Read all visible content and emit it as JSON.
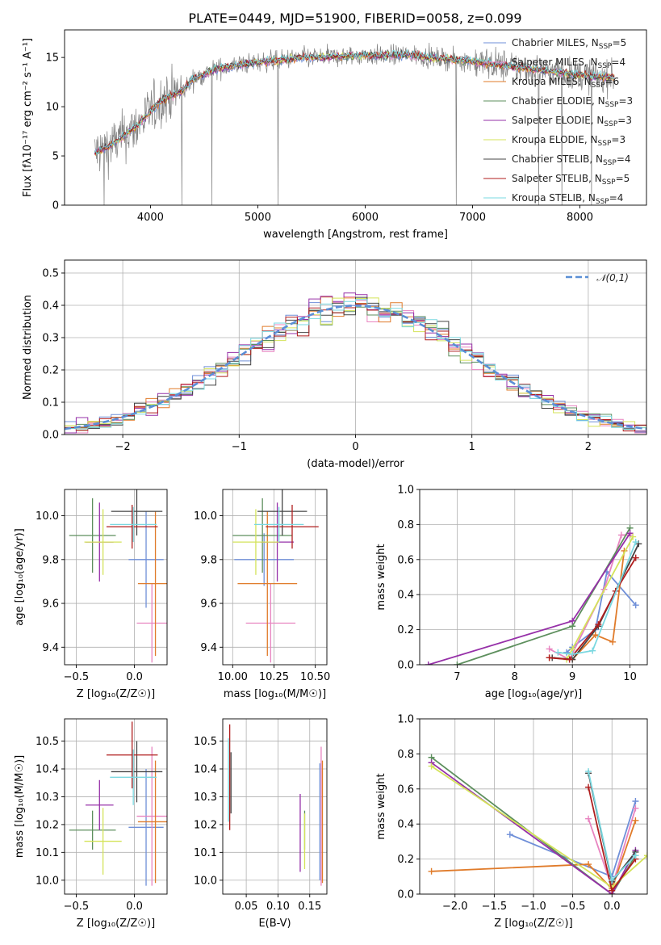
{
  "figure": {
    "title": "PLATE=0449, MJD=51900, FIBERID=0058, z=0.099"
  },
  "models": [
    {
      "name": "Chabrier MILES",
      "nssp": "5",
      "color": "#6f8fd8"
    },
    {
      "name": "Salpeter MILES",
      "nssp": "4",
      "color": "#e884c0"
    },
    {
      "name": "Kroupa MILES",
      "nssp": "6",
      "color": "#e07b2a"
    },
    {
      "name": "Chabrier ELODIE",
      "nssp": "3",
      "color": "#5d8f5d"
    },
    {
      "name": "Salpeter ELODIE",
      "nssp": "3",
      "color": "#9630a8"
    },
    {
      "name": "Kroupa ELODIE",
      "nssp": "3",
      "color": "#d4e35a"
    },
    {
      "name": "Chabrier STELIB",
      "nssp": "4",
      "color": "#444444"
    },
    {
      "name": "Salpeter STELIB",
      "nssp": "5",
      "color": "#b01e1e"
    },
    {
      "name": "Kroupa STELIB",
      "nssp": "4",
      "color": "#7ad8e0"
    }
  ],
  "chart_data": [
    {
      "id": "spectrum",
      "type": "line",
      "xlabel": "wavelength [Angstrom, rest frame]",
      "ylabel": "Flux [fλ10⁻¹⁷ erg cm⁻² s⁻¹ A⁻¹]",
      "xlim": [
        3200,
        8620
      ],
      "ylim": [
        0,
        17.8
      ],
      "xticks": [
        4000,
        5000,
        6000,
        7000,
        8000
      ],
      "yticks": [
        0,
        5,
        10,
        15
      ],
      "legend_loc": "right",
      "data_envelope": {
        "x": [
          3500,
          3600,
          3700,
          3800,
          3900,
          4000,
          4100,
          4200,
          4300,
          4400,
          4500,
          4600,
          4800,
          5000,
          5200,
          5400,
          5600,
          5800,
          6000,
          6200,
          6400,
          6600,
          6800,
          7000,
          7200,
          7400,
          7600,
          7800,
          8000,
          8200
        ],
        "y": [
          5.4,
          5.9,
          6.6,
          7.4,
          8.3,
          9.5,
          10.6,
          11.2,
          11.6,
          12.8,
          13.3,
          13.8,
          14.2,
          14.5,
          14.7,
          15.0,
          15.0,
          15.1,
          15.2,
          15.2,
          15.3,
          15.0,
          14.8,
          14.6,
          14.3,
          14.0,
          13.7,
          13.5,
          13.2,
          13.0
        ]
      },
      "noise_amplitude": 2.2
    },
    {
      "id": "residuals",
      "type": "histogram",
      "xlabel": "(data-model)/error",
      "ylabel": "Normed distribution",
      "xlim": [
        -2.5,
        2.5
      ],
      "ylim": [
        0,
        0.54
      ],
      "xticks": [
        -2,
        -1,
        0,
        1,
        2
      ],
      "yticks": [
        0,
        0.1,
        0.2,
        0.3,
        0.4,
        0.5
      ],
      "reference": {
        "label": "𝒩(0,1)",
        "mean": 0,
        "sigma": 1
      },
      "bins": 50
    },
    {
      "id": "age-vs-z",
      "type": "errorbar",
      "xlabel": "Z [log₁₀(Z/Z☉)]",
      "ylabel": "age  [log₁₀(age/yr)]",
      "xlim": [
        -0.6,
        0.28
      ],
      "ylim": [
        9.32,
        10.12
      ],
      "xticks": [
        -0.5,
        0.0
      ],
      "xtick_labels": [
        "−0.5",
        "0.0"
      ],
      "yticks": [
        9.4,
        9.6,
        9.8,
        10.0
      ],
      "points": [
        {
          "x": 0.1,
          "y": 9.8,
          "xerr": 0.15,
          "yerr": 0.22
        },
        {
          "x": 0.15,
          "y": 9.51,
          "xerr": 0.13,
          "yerr": 0.18
        },
        {
          "x": 0.18,
          "y": 9.69,
          "xerr": 0.15,
          "yerr": 0.33
        },
        {
          "x": -0.36,
          "y": 9.91,
          "xerr": 0.2,
          "yerr": 0.17
        },
        {
          "x": -0.3,
          "y": 9.88,
          "xerr": 0.12,
          "yerr": 0.18
        },
        {
          "x": -0.27,
          "y": 9.88,
          "xerr": 0.16,
          "yerr": 0.15
        },
        {
          "x": 0.02,
          "y": 10.02,
          "xerr": 0.22,
          "yerr": 0.11
        },
        {
          "x": -0.02,
          "y": 9.95,
          "xerr": 0.22,
          "yerr": 0.1
        },
        {
          "x": -0.01,
          "y": 9.96,
          "xerr": 0.2,
          "yerr": 0.08
        }
      ]
    },
    {
      "id": "age-vs-mass",
      "type": "errorbar",
      "xlabel": "mass [log₁₀(M/M☉)]",
      "ylabel": "",
      "xlim": [
        9.94,
        10.57
      ],
      "ylim": [
        9.32,
        10.12
      ],
      "xticks": [
        10.0,
        10.25,
        10.5
      ],
      "xtick_labels": [
        "10.00",
        "10.25",
        "10.50"
      ],
      "yticks": [
        9.4,
        9.6,
        9.8,
        10.0
      ],
      "points": [
        {
          "x": 10.19,
          "y": 9.8,
          "xerr": 0.18,
          "yerr": 0.12
        },
        {
          "x": 10.23,
          "y": 9.51,
          "xerr": 0.15,
          "yerr": 0.18
        },
        {
          "x": 10.21,
          "y": 9.69,
          "xerr": 0.18,
          "yerr": 0.33
        },
        {
          "x": 10.18,
          "y": 9.91,
          "xerr": 0.18,
          "yerr": 0.17
        },
        {
          "x": 10.27,
          "y": 9.88,
          "xerr": 0.1,
          "yerr": 0.18
        },
        {
          "x": 10.14,
          "y": 9.88,
          "xerr": 0.14,
          "yerr": 0.15
        },
        {
          "x": 10.3,
          "y": 10.02,
          "xerr": 0.15,
          "yerr": 0.11
        },
        {
          "x": 10.36,
          "y": 9.95,
          "xerr": 0.16,
          "yerr": 0.1
        },
        {
          "x": 10.28,
          "y": 9.96,
          "xerr": 0.15,
          "yerr": 0.08
        }
      ]
    },
    {
      "id": "weight-vs-age",
      "type": "line",
      "xlabel": "age  [log₁₀(age/yr)]",
      "ylabel": "mass weight",
      "xlim": [
        6.35,
        10.3
      ],
      "ylim": [
        0,
        1.0
      ],
      "xticks": [
        7,
        8,
        9,
        10
      ],
      "yticks": [
        0.0,
        0.2,
        0.4,
        0.6,
        0.8,
        1.0
      ],
      "series": [
        {
          "x": [
            8.9,
            9.0,
            9.4,
            9.6,
            10.1
          ],
          "y": [
            0.07,
            0.1,
            0.2,
            0.53,
            0.34
          ]
        },
        {
          "x": [
            8.6,
            8.95,
            9.55,
            9.85,
            10.0
          ],
          "y": [
            0.09,
            0.03,
            0.43,
            0.74,
            0.74
          ]
        },
        {
          "x": [
            8.6,
            9.0,
            9.4,
            9.7,
            9.9
          ],
          "y": [
            0.04,
            0.03,
            0.17,
            0.13,
            0.65
          ]
        },
        {
          "x": [
            7.0,
            9.0,
            10.0
          ],
          "y": [
            0.0,
            0.22,
            0.78
          ]
        },
        {
          "x": [
            6.5,
            9.0,
            10.0
          ],
          "y": [
            0.0,
            0.25,
            0.75
          ]
        },
        {
          "x": [
            8.9,
            9.0,
            10.05
          ],
          "y": [
            0.03,
            0.09,
            0.73
          ]
        },
        {
          "x": [
            8.65,
            9.0,
            9.45,
            10.15
          ],
          "y": [
            0.04,
            0.03,
            0.22,
            0.69
          ]
        },
        {
          "x": [
            8.6,
            8.95,
            9.45,
            9.75,
            10.1
          ],
          "y": [
            0.04,
            0.03,
            0.23,
            0.42,
            0.61
          ]
        },
        {
          "x": [
            8.75,
            9.0,
            9.35,
            10.1
          ],
          "y": [
            0.07,
            0.06,
            0.08,
            0.7
          ]
        }
      ]
    },
    {
      "id": "mass-vs-z",
      "type": "errorbar",
      "xlabel": "Z [log₁₀(Z/Z☉)]",
      "ylabel": "mass [log₁₀(M/M☉)]",
      "xlim": [
        -0.6,
        0.28
      ],
      "ylim": [
        9.95,
        10.58
      ],
      "xticks": [
        -0.5,
        0.0
      ],
      "xtick_labels": [
        "−0.5",
        "0.0"
      ],
      "yticks": [
        10.0,
        10.1,
        10.2,
        10.3,
        10.4,
        10.5
      ],
      "points": [
        {
          "x": 0.1,
          "y": 10.19,
          "xerr": 0.15,
          "yerr": 0.21
        },
        {
          "x": 0.15,
          "y": 10.23,
          "xerr": 0.13,
          "yerr": 0.25
        },
        {
          "x": 0.18,
          "y": 10.21,
          "xerr": 0.15,
          "yerr": 0.22
        },
        {
          "x": -0.36,
          "y": 10.18,
          "xerr": 0.2,
          "yerr": 0.07
        },
        {
          "x": -0.3,
          "y": 10.27,
          "xerr": 0.12,
          "yerr": 0.09
        },
        {
          "x": -0.27,
          "y": 10.14,
          "xerr": 0.16,
          "yerr": 0.12
        },
        {
          "x": 0.02,
          "y": 10.39,
          "xerr": 0.22,
          "yerr": 0.11
        },
        {
          "x": -0.02,
          "y": 10.45,
          "xerr": 0.22,
          "yerr": 0.12
        },
        {
          "x": -0.01,
          "y": 10.37,
          "xerr": 0.2,
          "yerr": 0.1
        }
      ]
    },
    {
      "id": "mass-vs-ebv",
      "type": "errorbar",
      "xlabel": "E(B-V)",
      "ylabel": "",
      "xlim": [
        0.013,
        0.177
      ],
      "ylim": [
        9.95,
        10.58
      ],
      "xticks": [
        0.05,
        0.1,
        0.15
      ],
      "xtick_labels": [
        "0.05",
        "0.10",
        "0.15"
      ],
      "yticks": [
        10.0,
        10.1,
        10.2,
        10.3,
        10.4,
        10.5
      ],
      "points": [
        {
          "x": 0.166,
          "y": 10.21,
          "xerr": 0.0,
          "yerr": 0.21
        },
        {
          "x": 0.168,
          "y": 10.23,
          "xerr": 0.0,
          "yerr": 0.25
        },
        {
          "x": 0.17,
          "y": 10.21,
          "xerr": 0.0,
          "yerr": 0.22
        },
        {
          "x": 0.142,
          "y": 10.18,
          "xerr": 0.0,
          "yerr": 0.07
        },
        {
          "x": 0.135,
          "y": 10.17,
          "xerr": 0.0,
          "yerr": 0.14
        },
        {
          "x": 0.142,
          "y": 10.14,
          "xerr": 0.0,
          "yerr": 0.1
        },
        {
          "x": 0.026,
          "y": 10.35,
          "xerr": 0.0,
          "yerr": 0.11
        },
        {
          "x": 0.024,
          "y": 10.37,
          "xerr": 0.0,
          "yerr": 0.19
        },
        {
          "x": 0.022,
          "y": 10.36,
          "xerr": 0.0,
          "yerr": 0.15
        }
      ]
    },
    {
      "id": "weight-vs-z",
      "type": "line",
      "xlabel": "Z [log₁₀(Z/Z☉)]",
      "ylabel": "mass weight",
      "xlim": [
        -2.45,
        0.45
      ],
      "ylim": [
        0,
        1.0
      ],
      "xticks": [
        -2.0,
        -1.5,
        -1.0,
        -0.5,
        0.0
      ],
      "xtick_labels": [
        "−2.0",
        "−1.5",
        "−1.0",
        "−0.5",
        "0.0"
      ],
      "yticks": [
        0.0,
        0.2,
        0.4,
        0.6,
        0.8,
        1.0
      ],
      "series": [
        {
          "x": [
            -1.3,
            0.0,
            0.3
          ],
          "y": [
            0.34,
            0.1,
            0.53
          ]
        },
        {
          "x": [
            -0.3,
            0.0,
            0.3
          ],
          "y": [
            0.43,
            0.04,
            0.49
          ]
        },
        {
          "x": [
            -2.3,
            -0.3,
            0.0,
            0.3
          ],
          "y": [
            0.13,
            0.17,
            0.03,
            0.42
          ]
        },
        {
          "x": [
            -2.3,
            0.0,
            0.3
          ],
          "y": [
            0.78,
            0.0,
            0.22
          ]
        },
        {
          "x": [
            -2.3,
            0.0,
            0.3
          ],
          "y": [
            0.75,
            0.0,
            0.25
          ]
        },
        {
          "x": [
            -2.3,
            0.0,
            0.45
          ],
          "y": [
            0.73,
            0.04,
            0.22
          ]
        },
        {
          "x": [
            -0.3,
            0.0,
            0.3
          ],
          "y": [
            0.69,
            0.07,
            0.24
          ]
        },
        {
          "x": [
            -0.3,
            0.0,
            0.3
          ],
          "y": [
            0.61,
            0.02,
            0.2
          ]
        },
        {
          "x": [
            -0.3,
            0.0,
            0.3
          ],
          "y": [
            0.7,
            0.08,
            0.22
          ]
        }
      ]
    }
  ]
}
